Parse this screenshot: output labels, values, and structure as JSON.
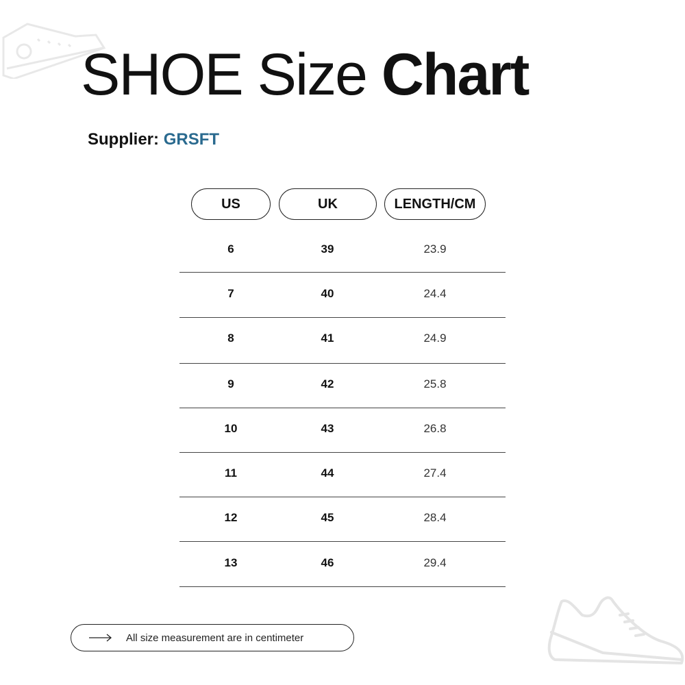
{
  "title": {
    "regular": "SHOE Size",
    "bold": "Chart"
  },
  "supplier": {
    "label": "Supplier:",
    "value": "GRSFT",
    "value_color": "#2a6a8f"
  },
  "table": {
    "headers": [
      "US",
      "UK",
      "LENGTH/CM"
    ],
    "rows": [
      [
        "6",
        "39",
        "23.9"
      ],
      [
        "7",
        "40",
        "24.4"
      ],
      [
        "8",
        "41",
        "24.9"
      ],
      [
        "9",
        "42",
        "25.8"
      ],
      [
        "10",
        "43",
        "26.8"
      ],
      [
        "11",
        "44",
        "27.4"
      ],
      [
        "12",
        "45",
        "28.4"
      ],
      [
        "13",
        "46",
        "29.4"
      ]
    ]
  },
  "footer": {
    "icon": "arrow-right-icon",
    "text": "All size measurement are in centimeter"
  },
  "decorations": [
    "sneaker-high-top-icon",
    "sneaker-running-icon"
  ]
}
